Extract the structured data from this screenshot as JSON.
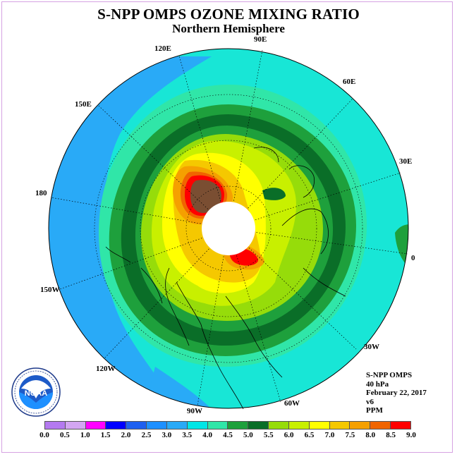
{
  "header": {
    "title": "S-NPP OMPS OZONE MIXING RATIO",
    "subtitle": "Northern Hemisphere"
  },
  "longitude_labels": [
    "90E",
    "60E",
    "30E",
    "0",
    "30W",
    "60W",
    "90W",
    "120W",
    "150W",
    "180",
    "150E",
    "120E"
  ],
  "info": {
    "instrument": "S-NPP OMPS",
    "pressure": "40 hPa",
    "date": "February 22, 2017",
    "version": "v6",
    "units": "PPM"
  },
  "logo": {
    "text": "NOAA"
  },
  "colorbar": {
    "ticks": [
      "0.0",
      "0.5",
      "1.0",
      "1.5",
      "2.0",
      "2.5",
      "3.0",
      "3.5",
      "4.0",
      "4.5",
      "5.0",
      "5.5",
      "6.0",
      "6.5",
      "7.0",
      "7.5",
      "8.0",
      "8.5",
      "9.0"
    ],
    "colors": [
      "#b47af0",
      "#d3a6f2",
      "#ff00ff",
      "#0000ff",
      "#1e60f0",
      "#1e90ff",
      "#29aaf7",
      "#00e6e6",
      "#30e6a8",
      "#1ea03c",
      "#0a6e28",
      "#96dc0a",
      "#c8f000",
      "#ffff00",
      "#f5c800",
      "#f5a000",
      "#f06400",
      "#ff0000",
      "#7a4e32"
    ]
  }
}
